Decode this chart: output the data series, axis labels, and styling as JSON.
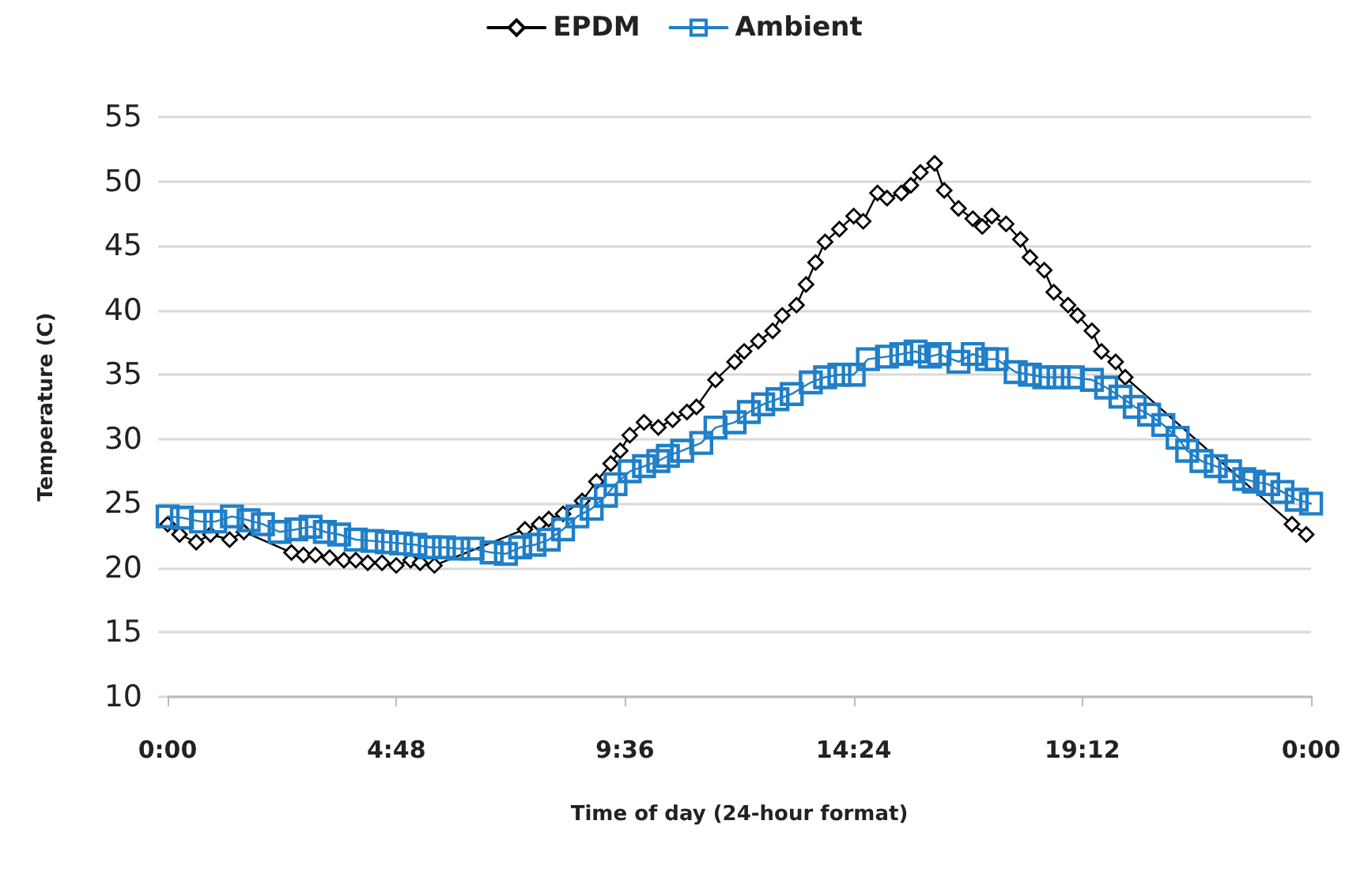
{
  "chart_data": {
    "type": "line",
    "xlabel": "Time of day (24-hour format)",
    "ylabel": "Temperature (C)",
    "xlim": [
      0,
      24
    ],
    "xticks": [
      {
        "value": 0,
        "label": "0:00"
      },
      {
        "value": 4.8,
        "label": "4:48"
      },
      {
        "value": 9.6,
        "label": "9:36"
      },
      {
        "value": 14.4,
        "label": "14:24"
      },
      {
        "value": 19.2,
        "label": "19:12"
      },
      {
        "value": 24,
        "label": "0:00"
      }
    ],
    "ylim": [
      10,
      55
    ],
    "yticks": [
      10,
      15,
      20,
      25,
      30,
      35,
      40,
      45,
      50,
      55
    ],
    "grid": "y",
    "legend": "top",
    "line_style": "solid",
    "series": [
      {
        "name": "EPDM",
        "color": "#000000",
        "marker": "diamond",
        "x": [
          0,
          0.25,
          0.6,
          0.9,
          1.3,
          1.6,
          2.6,
          2.85,
          3.1,
          3.4,
          3.7,
          3.95,
          4.2,
          4.5,
          4.8,
          5.1,
          5.3,
          5.6,
          7.5,
          7.8,
          8.0,
          8.3,
          8.7,
          9.0,
          9.3,
          9.5,
          9.7,
          10.0,
          10.3,
          10.6,
          10.9,
          11.1,
          11.5,
          11.9,
          12.1,
          12.4,
          12.7,
          12.9,
          13.2,
          13.4,
          13.6,
          13.8,
          14.1,
          14.4,
          14.6,
          14.9,
          15.1,
          15.4,
          15.6,
          15.8,
          16.1,
          16.3,
          16.6,
          16.9,
          17.1,
          17.3,
          17.6,
          17.9,
          18.1,
          18.4,
          18.6,
          18.9,
          19.1,
          19.4,
          19.6,
          19.9,
          20.1,
          23.6,
          23.9
        ],
        "values": [
          23.4,
          22.6,
          22.0,
          22.6,
          22.2,
          22.8,
          21.2,
          21.0,
          21.0,
          20.8,
          20.6,
          20.6,
          20.4,
          20.4,
          20.2,
          20.6,
          20.4,
          20.2,
          23.0,
          23.4,
          23.8,
          24.2,
          25.2,
          26.7,
          28.1,
          29.1,
          30.3,
          31.3,
          30.9,
          31.5,
          32.1,
          32.5,
          34.6,
          36.0,
          36.8,
          37.6,
          38.4,
          39.6,
          40.4,
          42.0,
          43.7,
          45.3,
          46.3,
          47.3,
          46.9,
          49.1,
          48.7,
          49.1,
          49.7,
          50.7,
          51.4,
          49.3,
          47.9,
          47.1,
          46.5,
          47.3,
          46.7,
          45.5,
          44.1,
          43.1,
          41.4,
          40.4,
          39.6,
          38.4,
          36.8,
          36.0,
          34.8,
          23.4,
          22.6
        ]
      },
      {
        "name": "Ambient",
        "color": "#1f7fc8",
        "marker": "square",
        "x": [
          0,
          0.3,
          0.7,
          1.0,
          1.35,
          1.7,
          2.0,
          2.35,
          2.7,
          3.0,
          3.3,
          3.6,
          3.95,
          4.3,
          4.6,
          4.9,
          5.2,
          5.5,
          5.8,
          6.1,
          6.4,
          6.8,
          7.1,
          7.4,
          7.7,
          8.0,
          8.3,
          8.6,
          8.9,
          9.2,
          9.4,
          9.7,
          10.0,
          10.3,
          10.5,
          10.8,
          11.2,
          11.5,
          11.9,
          12.2,
          12.5,
          12.8,
          13.1,
          13.5,
          13.8,
          14.1,
          14.4,
          14.7,
          15.1,
          15.4,
          15.7,
          16.0,
          16.2,
          16.6,
          16.9,
          17.2,
          17.4,
          17.8,
          18.1,
          18.4,
          18.7,
          19.0,
          19.4,
          19.7,
          20.0,
          20.3,
          20.6,
          20.9,
          21.2,
          21.4,
          21.7,
          22.0,
          22.3,
          22.6,
          22.8,
          23.1,
          23.4,
          23.7,
          24.0
        ],
        "values": [
          24.0,
          23.9,
          23.6,
          23.6,
          24.0,
          23.7,
          23.4,
          22.8,
          23.0,
          23.2,
          22.8,
          22.6,
          22.2,
          22.1,
          22.0,
          21.9,
          21.8,
          21.6,
          21.6,
          21.5,
          21.5,
          21.2,
          21.1,
          21.6,
          21.8,
          22.2,
          23.0,
          24.0,
          24.6,
          25.6,
          26.5,
          27.5,
          27.9,
          28.3,
          28.7,
          29.1,
          29.7,
          30.9,
          31.3,
          32.1,
          32.7,
          33.1,
          33.5,
          34.4,
          34.8,
          35.0,
          35.0,
          36.2,
          36.4,
          36.6,
          36.8,
          36.4,
          36.6,
          36.0,
          36.6,
          36.2,
          36.2,
          35.2,
          35.0,
          34.8,
          34.8,
          34.8,
          34.6,
          34.0,
          33.3,
          32.5,
          31.9,
          31.1,
          30.1,
          29.1,
          28.3,
          27.9,
          27.5,
          26.9,
          26.7,
          26.5,
          25.9,
          25.3,
          25.0
        ]
      }
    ]
  }
}
